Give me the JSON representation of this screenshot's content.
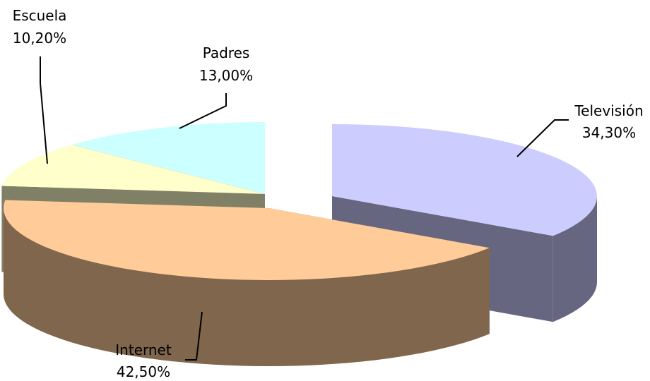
{
  "chart_data": {
    "type": "pie",
    "style": "3d-exploded",
    "slices": [
      {
        "label": "Televisión",
        "percent_text": "34,30%",
        "value": 34.3,
        "color": "#ccccff",
        "side_color": "#666680"
      },
      {
        "label": "Internet",
        "percent_text": "42,50%",
        "value": 42.5,
        "color": "#ffcc99",
        "side_color": "#80664d"
      },
      {
        "label": "Escuela",
        "percent_text": "10,20%",
        "value": 10.2,
        "color": "#ffffcc",
        "side_color": "#808066"
      },
      {
        "label": "Padres",
        "percent_text": "13,00%",
        "value": 13.0,
        "color": "#ccffff",
        "side_color": "#668080"
      }
    ]
  }
}
